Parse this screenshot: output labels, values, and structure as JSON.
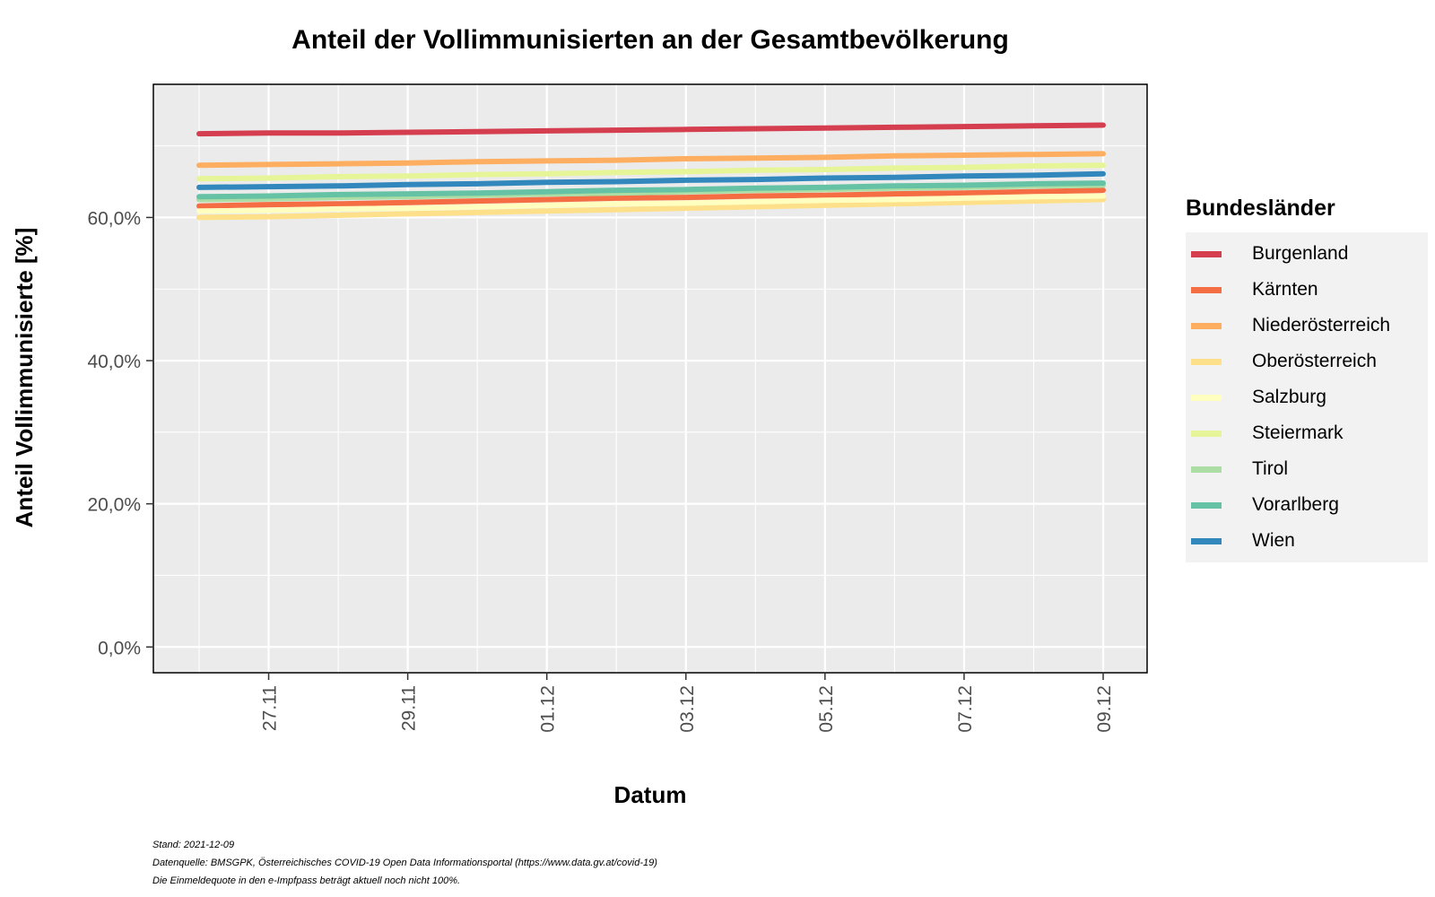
{
  "chart_data": {
    "type": "line",
    "title": "Anteil der Vollimmunisierten an der Gesamtbevölkerung",
    "xlabel": "Datum",
    "ylabel": "Anteil Vollimmunisierte [%]",
    "x": [
      "2021-11-26",
      "2021-11-27",
      "2021-11-28",
      "2021-11-29",
      "2021-11-30",
      "2021-12-01",
      "2021-12-02",
      "2021-12-03",
      "2021-12-04",
      "2021-12-05",
      "2021-12-06",
      "2021-12-07",
      "2021-12-08",
      "2021-12-09"
    ],
    "x_ticks": [
      "27.11",
      "29.11",
      "01.12",
      "03.12",
      "05.12",
      "07.12",
      "09.12"
    ],
    "y_ticks": [
      "0,0%",
      "20,0%",
      "40,0%",
      "60,0%"
    ],
    "ylim": [
      -3.6,
      78.6
    ],
    "grid": true,
    "legend_title": "Bundesländer",
    "legend_position": "right",
    "series": [
      {
        "name": "Burgenland",
        "color": "#d53e4f",
        "values": [
          71.7,
          71.8,
          71.8,
          71.9,
          72.0,
          72.1,
          72.2,
          72.3,
          72.4,
          72.5,
          72.6,
          72.7,
          72.8,
          72.9
        ]
      },
      {
        "name": "Kärnten",
        "color": "#f46d43",
        "values": [
          61.6,
          61.8,
          61.9,
          62.1,
          62.3,
          62.5,
          62.7,
          62.8,
          63.0,
          63.1,
          63.3,
          63.4,
          63.6,
          63.8
        ]
      },
      {
        "name": "Niederösterreich",
        "color": "#fdae61",
        "values": [
          67.3,
          67.4,
          67.5,
          67.6,
          67.8,
          67.9,
          68.0,
          68.2,
          68.3,
          68.4,
          68.6,
          68.7,
          68.8,
          68.9
        ]
      },
      {
        "name": "Oberösterreich",
        "color": "#fee08b",
        "values": [
          60.0,
          60.1,
          60.3,
          60.5,
          60.7,
          60.9,
          61.1,
          61.3,
          61.5,
          61.7,
          61.9,
          62.1,
          62.3,
          62.5
        ]
      },
      {
        "name": "Salzburg",
        "color": "#ffffbf",
        "values": [
          60.9,
          61.0,
          61.2,
          61.3,
          61.5,
          61.7,
          61.9,
          62.0,
          62.2,
          62.4,
          62.5,
          62.7,
          62.9,
          63.0
        ]
      },
      {
        "name": "Steiermark",
        "color": "#e6f598",
        "values": [
          65.4,
          65.5,
          65.7,
          65.8,
          66.0,
          66.1,
          66.3,
          66.4,
          66.6,
          66.7,
          66.9,
          67.0,
          67.2,
          67.3
        ]
      },
      {
        "name": "Tirol",
        "color": "#abdda4",
        "values": [
          62.5,
          62.6,
          62.8,
          62.9,
          63.1,
          63.3,
          63.4,
          63.6,
          63.8,
          63.9,
          64.1,
          64.2,
          64.4,
          64.5
        ]
      },
      {
        "name": "Vorarlberg",
        "color": "#66c2a5",
        "values": [
          62.9,
          63.0,
          63.2,
          63.3,
          63.4,
          63.6,
          63.8,
          63.9,
          64.1,
          64.2,
          64.4,
          64.5,
          64.7,
          64.8
        ]
      },
      {
        "name": "Wien",
        "color": "#3288bd",
        "values": [
          64.2,
          64.3,
          64.4,
          64.6,
          64.7,
          64.9,
          65.0,
          65.2,
          65.3,
          65.5,
          65.6,
          65.8,
          65.9,
          66.1
        ]
      }
    ]
  },
  "footnotes": [
    "Stand: 2021-12-09",
    "Datenquelle: BMSGPK, Österreichisches COVID-19 Open Data Informationsportal (https://www.data.gv.at/covid-19)",
    "Die Einmeldequote in den e-Impfpass beträgt aktuell noch nicht 100%."
  ]
}
